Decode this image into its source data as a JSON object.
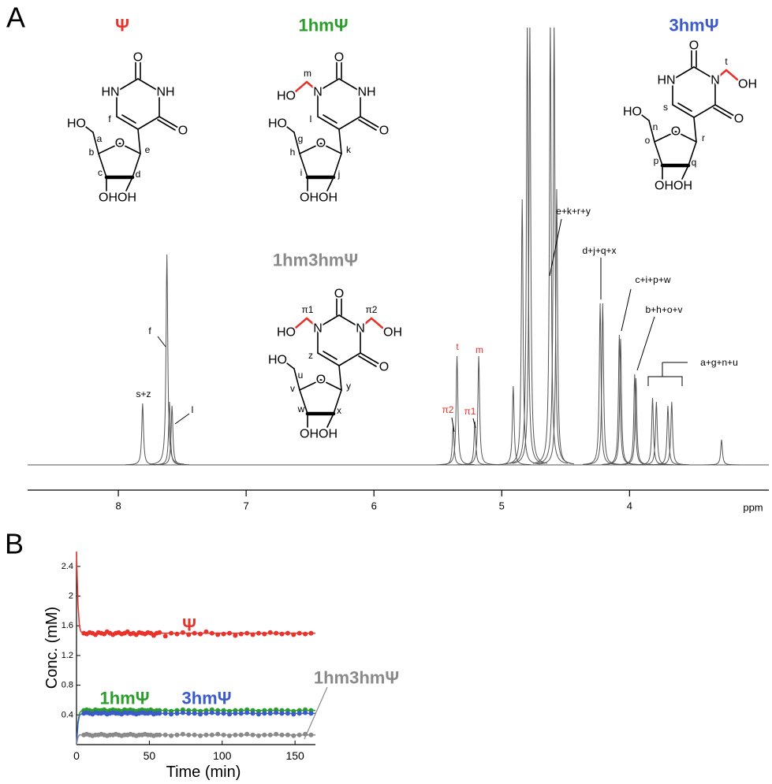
{
  "chart_data": [
    {
      "panel": "A",
      "type": "spectrum",
      "x_label": "ppm",
      "xlim": [
        8.71,
        2.91
      ],
      "xticks": [
        8,
        7,
        6,
        5,
        4
      ],
      "ylim": [
        0,
        555
      ],
      "color": "#555555",
      "peaks": {
        "x": [
          7.81,
          7.62,
          7.6,
          7.58,
          5.38,
          5.35,
          5.21,
          5.18,
          4.91,
          4.84,
          4.8,
          4.78,
          4.62,
          4.59,
          4.57,
          4.23,
          4.21,
          4.08,
          4.07,
          3.96,
          3.95,
          3.82,
          3.79,
          3.7,
          3.67,
          3.28
        ],
        "values": [
          78,
          267,
          80,
          75,
          50,
          138,
          55,
          138,
          100,
          337,
          560,
          560,
          560,
          560,
          350,
          205,
          205,
          165,
          160,
          115,
          110,
          85,
          80,
          75,
          80,
          32
        ]
      },
      "annotations": [
        {
          "text": "s+z",
          "color": "#000000"
        },
        {
          "text": "f",
          "color": "#000000"
        },
        {
          "text": "l",
          "color": "#000000"
        },
        {
          "text": "π2",
          "color": "#e8322a"
        },
        {
          "text": "π1",
          "color": "#e8322a"
        },
        {
          "text": "t",
          "color": "#e8322a"
        },
        {
          "text": "m",
          "color": "#e8322a"
        },
        {
          "text": "e+k+r+y",
          "color": "#000000"
        },
        {
          "text": "d+j+q+x",
          "color": "#000000"
        },
        {
          "text": "c+i+p+w",
          "color": "#000000"
        },
        {
          "text": "b+h+o+v",
          "color": "#000000"
        },
        {
          "text": "a+g+n+u",
          "color": "#000000"
        }
      ]
    },
    {
      "panel": "B",
      "type": "scatter",
      "x_label": "Time (min)",
      "y_label": "Conc. (mM)",
      "xlim": [
        0,
        164
      ],
      "xticks": [
        0,
        50,
        100,
        150
      ],
      "ylim": [
        0,
        2.6
      ],
      "yticks": [
        0.4,
        0.8,
        1.2,
        1.6,
        2,
        2.4
      ],
      "x": [
        5,
        7,
        9,
        11,
        13,
        15,
        17,
        19,
        21,
        23,
        25,
        27,
        29,
        31,
        33,
        35,
        37,
        39,
        41,
        43,
        45,
        47,
        49,
        51,
        53,
        55,
        57,
        61,
        65,
        69,
        73,
        77,
        81,
        85,
        89,
        93,
        97,
        101,
        105,
        109,
        113,
        117,
        121,
        125,
        129,
        133,
        137,
        141,
        145,
        149,
        153,
        157,
        161
      ],
      "fit_x": [
        0,
        1,
        2,
        3,
        5,
        164
      ],
      "series": [
        {
          "name": "Ψ",
          "color": "#e8322a",
          "values": [
            1.5,
            1.49,
            1.51,
            1.5,
            1.48,
            1.51,
            1.5,
            1.49,
            1.52,
            1.5,
            1.48,
            1.5,
            1.51,
            1.49,
            1.5,
            1.52,
            1.49,
            1.5,
            1.48,
            1.51,
            1.5,
            1.49,
            1.51,
            1.5,
            1.47,
            1.5,
            1.51,
            1.46,
            1.5,
            1.49,
            1.51,
            1.48,
            1.5,
            1.49,
            1.52,
            1.5,
            1.48,
            1.49,
            1.5,
            1.47,
            1.49,
            1.5,
            1.48,
            1.5,
            1.49,
            1.51,
            1.5,
            1.49,
            1.5,
            1.48,
            1.5,
            1.49,
            1.5
          ],
          "fit_values": [
            2.6,
            1.9,
            1.6,
            1.52,
            1.5,
            1.5
          ]
        },
        {
          "name": "1hmΨ",
          "color": "#2a9d2a",
          "values": [
            0.46,
            0.47,
            0.46,
            0.45,
            0.47,
            0.46,
            0.46,
            0.47,
            0.45,
            0.46,
            0.47,
            0.46,
            0.46,
            0.45,
            0.47,
            0.46,
            0.47,
            0.46,
            0.45,
            0.46,
            0.47,
            0.46,
            0.46,
            0.47,
            0.45,
            0.46,
            0.46,
            0.46,
            0.45,
            0.46,
            0.47,
            0.46,
            0.46,
            0.45,
            0.46,
            0.47,
            0.46,
            0.46,
            0.45,
            0.46,
            0.46,
            0.47,
            0.46,
            0.45,
            0.46,
            0.46,
            0.47,
            0.46,
            0.46,
            0.45,
            0.46,
            0.47,
            0.46
          ],
          "fit_values": [
            0,
            0.3,
            0.42,
            0.45,
            0.46,
            0.46
          ]
        },
        {
          "name": "3hmΨ",
          "color": "#3a5bc8",
          "values": [
            0.42,
            0.43,
            0.42,
            0.41,
            0.43,
            0.42,
            0.42,
            0.43,
            0.41,
            0.42,
            0.43,
            0.42,
            0.42,
            0.41,
            0.43,
            0.42,
            0.43,
            0.42,
            0.41,
            0.42,
            0.43,
            0.42,
            0.42,
            0.43,
            0.41,
            0.42,
            0.42,
            0.42,
            0.41,
            0.42,
            0.43,
            0.42,
            0.42,
            0.41,
            0.42,
            0.43,
            0.42,
            0.42,
            0.41,
            0.42,
            0.42,
            0.43,
            0.42,
            0.41,
            0.42,
            0.42,
            0.43,
            0.42,
            0.42,
            0.41,
            0.42,
            0.43,
            0.42
          ],
          "fit_values": [
            0,
            0.28,
            0.39,
            0.41,
            0.42,
            0.42
          ]
        },
        {
          "name": "1hm3hmΨ",
          "color": "#8a8a8a",
          "values": [
            0.13,
            0.14,
            0.13,
            0.12,
            0.13,
            0.13,
            0.14,
            0.13,
            0.12,
            0.13,
            0.13,
            0.14,
            0.13,
            0.12,
            0.13,
            0.13,
            0.14,
            0.13,
            0.12,
            0.13,
            0.13,
            0.14,
            0.13,
            0.13,
            0.12,
            0.13,
            0.13,
            0.13,
            0.12,
            0.13,
            0.14,
            0.13,
            0.13,
            0.12,
            0.13,
            0.13,
            0.14,
            0.13,
            0.12,
            0.13,
            0.13,
            0.14,
            0.13,
            0.12,
            0.13,
            0.13,
            0.14,
            0.13,
            0.13,
            0.12,
            0.13,
            0.14,
            0.13
          ],
          "fit_values": [
            0,
            0.1,
            0.13,
            0.13,
            0.13,
            0.13
          ]
        }
      ]
    }
  ],
  "structures": [
    {
      "name": "Ψ",
      "color": "#e8322a",
      "atoms": {
        "o2": "O",
        "o4": "O",
        "n1": "HN",
        "n3": "NH",
        "ring_o": "O",
        "ho5": "HO",
        "oh23": "OHOH"
      },
      "positions": {
        "c6": "f",
        "c5p": "a",
        "c4p": "b",
        "c3p": "c",
        "c2p": "d",
        "c1p": "e"
      }
    },
    {
      "name": "1hmΨ",
      "color": "#2a9d2a",
      "atoms": {
        "o2": "O",
        "o4": "O",
        "n1": "N",
        "n3": "NH",
        "ring_o": "O",
        "ho5": "HO",
        "oh23": "OHOH"
      },
      "n1_sub": {
        "group": "HO",
        "label": "m"
      },
      "positions": {
        "c6": "l",
        "c5p": "g",
        "c4p": "h",
        "c3p": "i",
        "c2p": "j",
        "c1p": "k"
      }
    },
    {
      "name": "3hmΨ",
      "color": "#3a5bc8",
      "atoms": {
        "o2": "O",
        "o4": "O",
        "n1": "HN",
        "n3": "N",
        "ring_o": "O",
        "ho5": "HO",
        "oh23": "OHOH"
      },
      "n3_sub": {
        "group": "OH",
        "label": "t"
      },
      "positions": {
        "c6": "s",
        "c5p": "n",
        "c4p": "o",
        "c3p": "p",
        "c2p": "q",
        "c1p": "r"
      }
    },
    {
      "name": "1hm3hmΨ",
      "color": "#8a8a8a",
      "atoms": {
        "o2": "O",
        "o4": "O",
        "n1": "N",
        "n3": "N",
        "ring_o": "O",
        "ho5": "HO",
        "oh23": "OHOH"
      },
      "n1_sub": {
        "group": "HO",
        "label": "π1"
      },
      "n3_sub": {
        "group": "OH",
        "label": "π2"
      },
      "positions": {
        "c6": "z",
        "c5p": "u",
        "c4p": "v",
        "c3p": "w",
        "c2p": "x",
        "c1p": "y"
      }
    }
  ]
}
